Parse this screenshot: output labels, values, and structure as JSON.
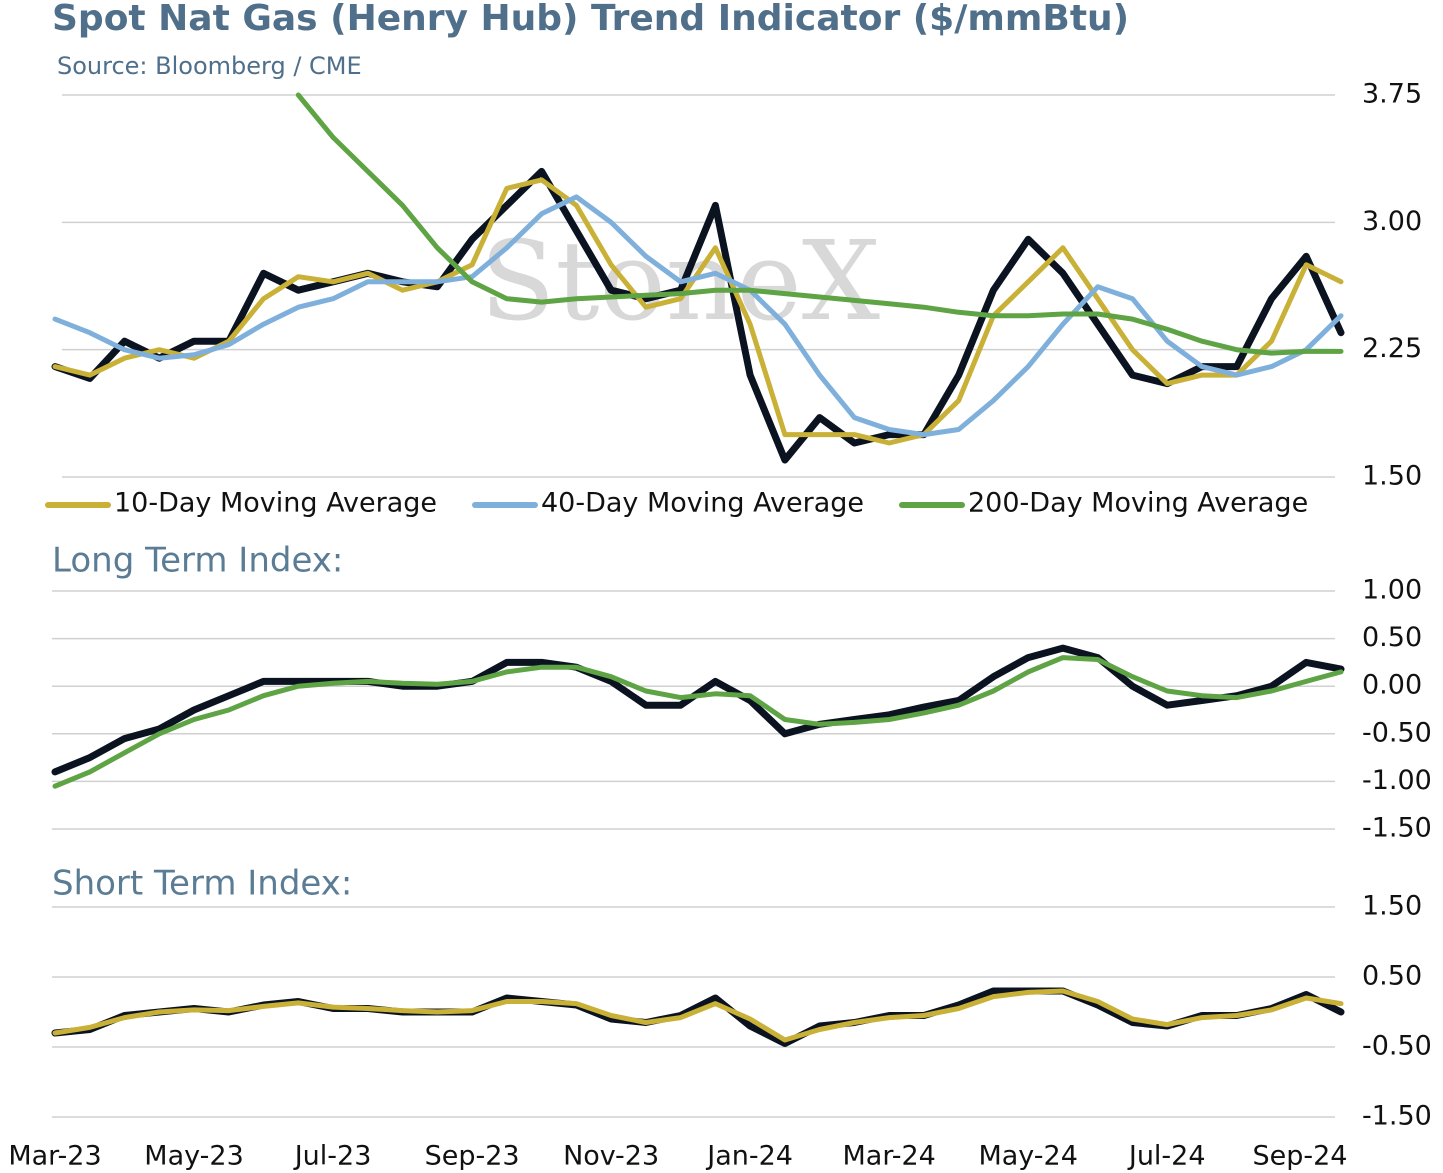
{
  "title": "Spot Nat Gas (Henry Hub) Trend Indicator ($/mmBtu)",
  "subtitle": "Source: Bloomberg / CME",
  "watermark": "StoneX",
  "chart_data": [
    {
      "type": "line",
      "ylim": [
        1.5,
        3.75
      ],
      "yticks": [
        {
          "value": 3.75,
          "label": "3.75"
        },
        {
          "value": 3.0,
          "label": "3.00"
        },
        {
          "value": 2.25,
          "label": "2.25"
        },
        {
          "value": 1.5,
          "label": "1.50"
        }
      ],
      "grid": true,
      "legend": "bottom",
      "series": [
        {
          "color": "#0b1320",
          "values": [
            2.15,
            2.08,
            2.3,
            2.2,
            2.3,
            2.3,
            2.7,
            2.6,
            2.65,
            2.7,
            2.65,
            2.62,
            2.9,
            3.1,
            3.3,
            2.95,
            2.6,
            2.55,
            2.6,
            3.1,
            2.1,
            1.6,
            1.85,
            1.7,
            1.75,
            1.75,
            2.1,
            2.6,
            2.9,
            2.7,
            2.4,
            2.1,
            2.05,
            2.15,
            2.15,
            2.55,
            2.8,
            2.35
          ]
        },
        {
          "name": "10-Day Moving Average",
          "color": "#c9b037",
          "values": [
            2.15,
            2.1,
            2.2,
            2.25,
            2.2,
            2.3,
            2.55,
            2.68,
            2.65,
            2.7,
            2.6,
            2.65,
            2.75,
            3.2,
            3.25,
            3.1,
            2.75,
            2.5,
            2.55,
            2.85,
            2.4,
            1.75,
            1.75,
            1.75,
            1.7,
            1.75,
            1.95,
            2.45,
            2.65,
            2.85,
            2.55,
            2.25,
            2.05,
            2.1,
            2.1,
            2.3,
            2.75,
            2.65
          ]
        },
        {
          "name": "40-Day Moving Average",
          "color": "#7fb0dc",
          "values": [
            2.43,
            2.35,
            2.25,
            2.2,
            2.22,
            2.28,
            2.4,
            2.5,
            2.55,
            2.65,
            2.65,
            2.65,
            2.68,
            2.85,
            3.05,
            3.15,
            3.0,
            2.8,
            2.65,
            2.7,
            2.6,
            2.4,
            2.1,
            1.85,
            1.78,
            1.75,
            1.78,
            1.95,
            2.15,
            2.4,
            2.62,
            2.55,
            2.3,
            2.15,
            2.1,
            2.15,
            2.25,
            2.45
          ]
        },
        {
          "name": "200-Day Moving Average",
          "color": "#5ea344",
          "values": [
            null,
            null,
            null,
            null,
            null,
            null,
            null,
            3.75,
            3.5,
            3.3,
            3.1,
            2.85,
            2.65,
            2.55,
            2.53,
            2.55,
            2.56,
            2.57,
            2.58,
            2.6,
            2.6,
            2.58,
            2.56,
            2.54,
            2.52,
            2.5,
            2.47,
            2.45,
            2.45,
            2.46,
            2.46,
            2.43,
            2.37,
            2.3,
            2.25,
            2.23,
            2.24,
            2.24
          ]
        }
      ]
    },
    {
      "type": "line",
      "title": "Long Term Index:",
      "ylim": [
        -1.5,
        1.0
      ],
      "yticks": [
        {
          "value": 1.0,
          "label": "1.00"
        },
        {
          "value": 0.5,
          "label": "0.50"
        },
        {
          "value": 0.0,
          "label": "0.00"
        },
        {
          "value": -0.5,
          "label": "-0.50"
        },
        {
          "value": -1.0,
          "label": "-1.00"
        },
        {
          "value": -1.5,
          "label": "-1.50"
        }
      ],
      "grid": true,
      "series": [
        {
          "color": "#0b1320",
          "values": [
            -0.9,
            -0.75,
            -0.55,
            -0.45,
            -0.25,
            -0.1,
            0.05,
            0.05,
            0.05,
            0.05,
            0.0,
            0.0,
            0.05,
            0.25,
            0.25,
            0.2,
            0.05,
            -0.2,
            -0.2,
            0.05,
            -0.15,
            -0.5,
            -0.4,
            -0.35,
            -0.3,
            -0.22,
            -0.15,
            0.1,
            0.3,
            0.4,
            0.3,
            0.0,
            -0.2,
            -0.15,
            -0.1,
            0.0,
            0.25,
            0.18
          ]
        },
        {
          "color": "#5ea344",
          "values": [
            -1.05,
            -0.9,
            -0.7,
            -0.5,
            -0.35,
            -0.25,
            -0.1,
            0.0,
            0.03,
            0.05,
            0.03,
            0.02,
            0.05,
            0.15,
            0.2,
            0.2,
            0.1,
            -0.05,
            -0.12,
            -0.08,
            -0.1,
            -0.35,
            -0.4,
            -0.38,
            -0.35,
            -0.28,
            -0.2,
            -0.05,
            0.15,
            0.3,
            0.28,
            0.1,
            -0.05,
            -0.1,
            -0.12,
            -0.05,
            0.05,
            0.15
          ]
        }
      ]
    },
    {
      "type": "line",
      "title": "Short Term Index:",
      "ylim": [
        -1.5,
        1.5
      ],
      "yticks": [
        {
          "value": 1.5,
          "label": "1.50"
        },
        {
          "value": 0.5,
          "label": "0.50"
        },
        {
          "value": -0.5,
          "label": "-0.50"
        },
        {
          "value": -1.5,
          "label": "-1.50"
        }
      ],
      "grid": true,
      "categories": [
        "Mar-23",
        null,
        null,
        null,
        "May-23",
        null,
        null,
        null,
        "Jul-23",
        null,
        null,
        null,
        "Sep-23",
        null,
        null,
        null,
        "Nov-23",
        null,
        null,
        null,
        "Jan-24",
        null,
        null,
        null,
        "Mar-24",
        null,
        null,
        null,
        "May-24",
        null,
        null,
        null,
        "Jul-24",
        null,
        null,
        null,
        "Sep-24",
        null
      ],
      "series": [
        {
          "color": "#0b1320",
          "values": [
            -0.3,
            -0.25,
            -0.05,
            0.0,
            0.05,
            0.0,
            0.1,
            0.15,
            0.05,
            0.05,
            0.0,
            0.0,
            0.0,
            0.2,
            0.15,
            0.1,
            -0.1,
            -0.15,
            -0.05,
            0.2,
            -0.2,
            -0.45,
            -0.2,
            -0.15,
            -0.05,
            -0.05,
            0.1,
            0.3,
            0.3,
            0.3,
            0.1,
            -0.15,
            -0.2,
            -0.05,
            -0.05,
            0.05,
            0.25,
            0.0
          ]
        },
        {
          "color": "#c9b037",
          "values": [
            -0.3,
            -0.22,
            -0.08,
            0.0,
            0.03,
            0.02,
            0.08,
            0.13,
            0.07,
            0.05,
            0.02,
            0.0,
            0.02,
            0.15,
            0.15,
            0.12,
            -0.05,
            -0.15,
            -0.08,
            0.12,
            -0.1,
            -0.4,
            -0.25,
            -0.15,
            -0.08,
            -0.05,
            0.05,
            0.22,
            0.28,
            0.3,
            0.15,
            -0.1,
            -0.18,
            -0.08,
            -0.05,
            0.03,
            0.2,
            0.12
          ]
        }
      ]
    }
  ]
}
